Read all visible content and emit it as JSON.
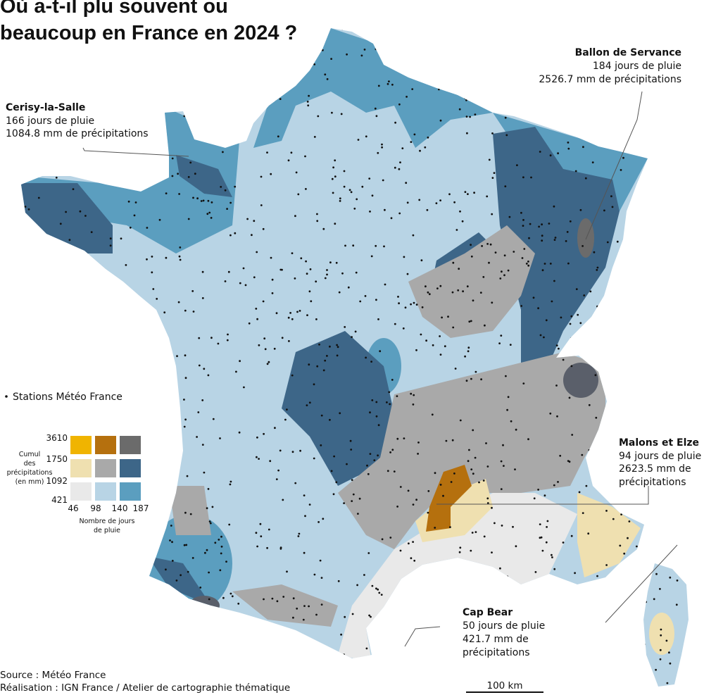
{
  "title": {
    "lines": [
      "Où a-t-il plu souvent ou",
      "beaucoup en France en 2024 ?"
    ]
  },
  "annotations": [
    {
      "name": "Cerisy-la-Salle",
      "lines": [
        "166 jours de pluie",
        "1084.8 mm de précipitations"
      ]
    },
    {
      "name": "Ballon de Servance",
      "lines": [
        "184 jours de pluie",
        "2526.7 mm de précipitations"
      ]
    },
    {
      "name": "Malons et Elze",
      "lines": [
        "94 jours de pluie",
        "2623.5 mm de",
        "précipitations"
      ]
    },
    {
      "name": "Cap Bear",
      "lines": [
        "50 jours de pluie",
        "421.7 mm de",
        "précipitations"
      ]
    }
  ],
  "legend": {
    "stations": "Stations Météo France",
    "precip_title": [
      "Cumul",
      "des",
      "précipitations",
      "(en mm)"
    ],
    "precip_breaks": [
      3610,
      1750,
      1092,
      421
    ],
    "days_breaks": [
      46,
      98,
      140,
      187
    ],
    "days_title": [
      "Nombre de jours",
      "de pluie"
    ]
  },
  "footer": {
    "source": "Source : Météo France",
    "credit": "Réalisation : IGN France / Atelier de cartographie thématique",
    "scale": "100 km"
  }
}
